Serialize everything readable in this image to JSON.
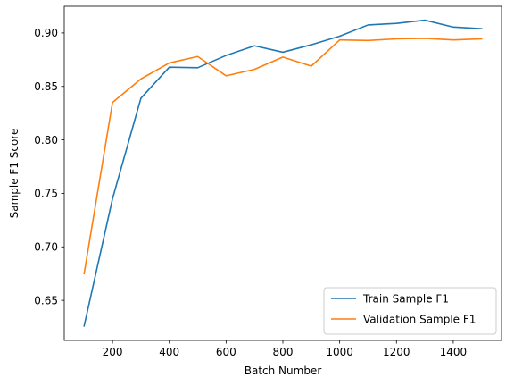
{
  "chart_data": {
    "type": "line",
    "title": "",
    "xlabel": "Batch Number",
    "ylabel": "Sample F1 Score",
    "xlim": [
      30,
      1570
    ],
    "ylim": [
      0.6125,
      0.925
    ],
    "xticks": [
      200,
      400,
      600,
      800,
      1000,
      1200,
      1400
    ],
    "yticks": [
      0.65,
      0.7,
      0.75,
      0.8,
      0.85,
      0.9
    ],
    "ytick_labels": [
      "0.65",
      "0.70",
      "0.75",
      "0.80",
      "0.85",
      "0.90"
    ],
    "grid": false,
    "legend_position": "lower-right",
    "x": [
      100,
      200,
      300,
      400,
      500,
      600,
      700,
      800,
      900,
      1000,
      1100,
      1200,
      1300,
      1400,
      1500
    ],
    "series": [
      {
        "name": "Train Sample F1",
        "color": "#1f77b4",
        "values": [
          0.626,
          0.745,
          0.839,
          0.868,
          0.8675,
          0.879,
          0.888,
          0.882,
          0.889,
          0.897,
          0.9075,
          0.909,
          0.912,
          0.9055,
          0.904
        ]
      },
      {
        "name": "Validation Sample F1",
        "color": "#ff7f0e",
        "values": [
          0.675,
          0.835,
          0.857,
          0.872,
          0.878,
          0.86,
          0.866,
          0.8775,
          0.869,
          0.8935,
          0.893,
          0.8945,
          0.895,
          0.8935,
          0.8945
        ]
      }
    ]
  }
}
